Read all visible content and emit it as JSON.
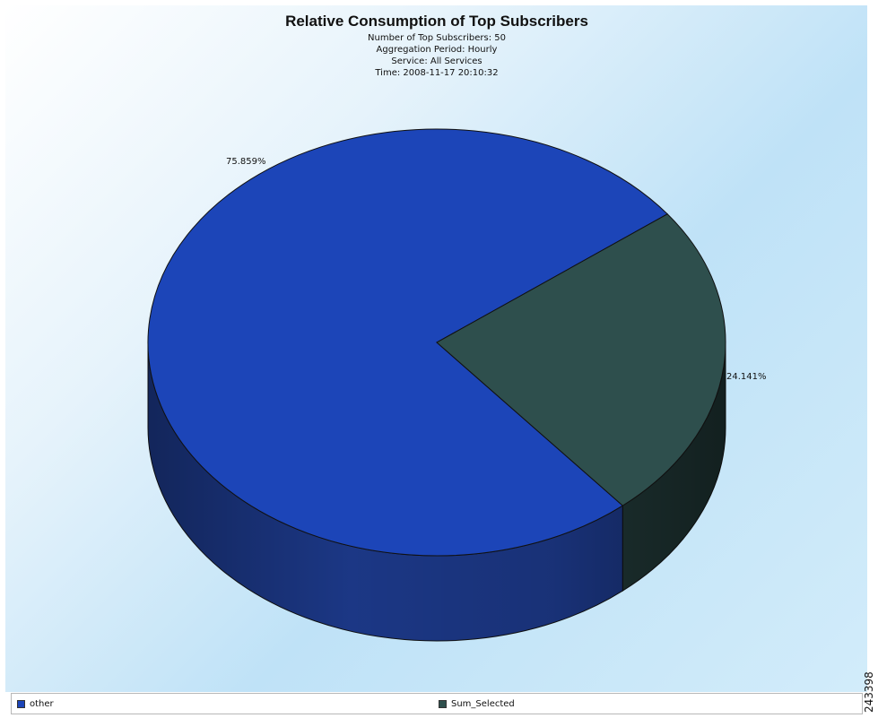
{
  "chart_data": {
    "type": "pie",
    "title": "Relative Consumption of Top Subscribers",
    "subtitle_lines": [
      "Number of Top Subscribers: 50",
      "Aggregation Period: Hourly",
      "Service: All Services",
      "Time: 2008-11-17 20:10:32"
    ],
    "slices": [
      {
        "label": "other",
        "value": 75.859,
        "display": "75.859%",
        "color": "#1c45b8",
        "side_color": "#1d3a8c"
      },
      {
        "label": "Sum_Selected",
        "value": 24.141,
        "display": "24.141%",
        "color": "#2e4f4d",
        "side_color": "#223a39"
      }
    ],
    "3d": true,
    "legend_position": "bottom"
  },
  "figure_id": "243398"
}
